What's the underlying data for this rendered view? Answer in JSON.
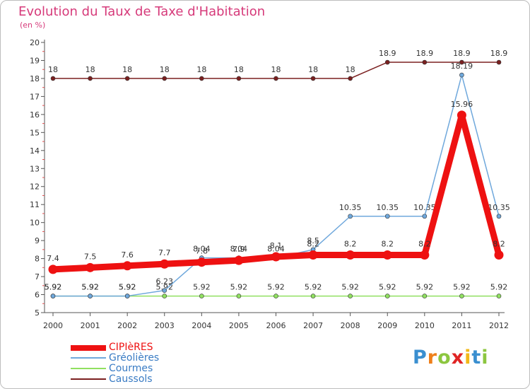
{
  "title": "Evolution du Taux de Taxe d'Habitation",
  "subtitle": "(en %)",
  "logo": {
    "text": "Proxiti",
    "letters": [
      {
        "ch": "P",
        "color": "#3a8fd0"
      },
      {
        "ch": "r",
        "color": "#ef7f1a"
      },
      {
        "ch": "o",
        "color": "#8cc63f"
      },
      {
        "ch": "x",
        "color": "#e02424"
      },
      {
        "ch": "i",
        "color": "#f2b818"
      },
      {
        "ch": "t",
        "color": "#3a8fd0"
      },
      {
        "ch": "i",
        "color": "#8cc63f"
      }
    ]
  },
  "chart_data": {
    "type": "line",
    "categories": [
      "2000",
      "2001",
      "2002",
      "2003",
      "2004",
      "2005",
      "2006",
      "2007",
      "2008",
      "2009",
      "2010",
      "2011",
      "2012"
    ],
    "ylim": [
      5,
      20
    ],
    "yticks": [
      "5",
      "6",
      "7",
      "8",
      "9",
      "10",
      "11",
      "12",
      "13",
      "14",
      "15",
      "16",
      "17",
      "18",
      "19",
      "20"
    ],
    "grid": false,
    "legend_position": "bottom-left",
    "series": [
      {
        "name": "Caussols",
        "color": "#7b2020",
        "values": [
          18,
          18,
          18,
          18,
          18,
          18,
          18,
          18,
          18,
          18.9,
          18.9,
          18.9,
          18.9
        ],
        "labels": [
          "18",
          "18",
          "18",
          "18",
          "18",
          "18",
          "18",
          "18",
          "18",
          "18.9",
          "18.9",
          "18.9",
          "18.9"
        ]
      },
      {
        "name": "Courmes",
        "color": "#90e060",
        "values": [
          5.92,
          5.92,
          5.92,
          5.92,
          5.92,
          5.92,
          5.92,
          5.92,
          5.92,
          5.92,
          5.92,
          5.92,
          5.92
        ],
        "labels": [
          "5.92",
          "5.92",
          "5.92",
          "5.92",
          "5.92",
          "5.92",
          "5.92",
          "5.92",
          "5.92",
          "5.92",
          "5.92",
          "5.92",
          "5.92"
        ]
      },
      {
        "name": "Gréolières",
        "color": "#6fa8dc",
        "values": [
          5.92,
          5.92,
          5.92,
          6.23,
          8.04,
          8.04,
          8.04,
          8.5,
          10.35,
          10.35,
          10.35,
          18.19,
          10.35
        ],
        "labels": [
          "5.92",
          "5.92",
          "5.92",
          "6.23",
          "8.04",
          "8.04",
          "8.04",
          "8.5",
          "10.35",
          "10.35",
          "10.35",
          "18.19",
          "10.35"
        ]
      },
      {
        "name": "CIPIèRES",
        "color": "#ee1111",
        "values": [
          7.4,
          7.5,
          7.6,
          7.7,
          7.8,
          7.9,
          8.1,
          8.2,
          8.2,
          8.2,
          8.2,
          15.96,
          8.2
        ],
        "labels": [
          "7.4",
          "7.5",
          "7.6",
          "7.7",
          "7.8",
          "7.9",
          "8.1",
          "8.2",
          "8.2",
          "8.2",
          "8.2",
          "15.96",
          "8.2"
        ]
      }
    ],
    "legend": [
      "CIPIèRES",
      "Gréolières",
      "Courmes",
      "Caussols"
    ]
  }
}
